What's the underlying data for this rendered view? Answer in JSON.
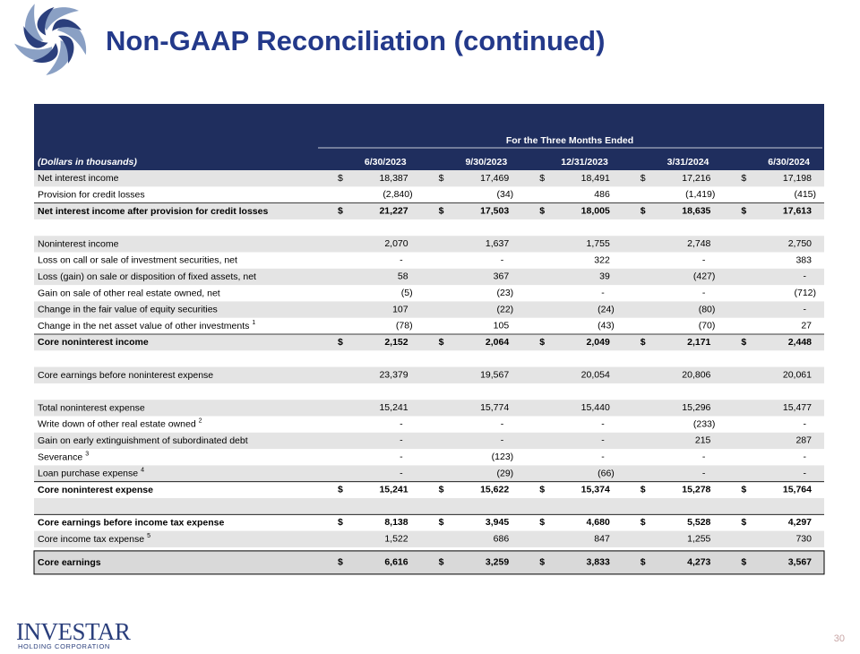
{
  "header": {
    "title": "Non-GAAP Reconciliation (continued)"
  },
  "table": {
    "period_label": "For the Three Months Ended",
    "unit_label": "(Dollars in thousands)",
    "columns": [
      "6/30/2023",
      "9/30/2023",
      "12/31/2023",
      "3/31/2024",
      "6/30/2024"
    ],
    "currency": "$",
    "sections": [
      [
        {
          "label": "Net interest income",
          "currency": true,
          "cells": [
            "18,387",
            "17,469",
            "18,491",
            "17,216",
            "17,198"
          ]
        },
        {
          "label": "Provision for credit losses",
          "cells": [
            "(2,840)",
            "(34)",
            "486",
            "(1,419)",
            "(415)"
          ]
        },
        {
          "label": "Net interest income after provision for credit losses",
          "bold": true,
          "currency": true,
          "cells": [
            "21,227",
            "17,503",
            "18,005",
            "18,635",
            "17,613"
          ]
        }
      ],
      [
        {
          "label": "Noninterest income",
          "cells": [
            "2,070",
            "1,637",
            "1,755",
            "2,748",
            "2,750"
          ]
        },
        {
          "label": "Loss on call or sale of investment securities, net",
          "cells": [
            "-",
            "-",
            "322",
            "-",
            "383"
          ]
        },
        {
          "label": "Loss (gain) on sale or disposition of fixed assets, net",
          "cells": [
            "58",
            "367",
            "39",
            "(427)",
            "-"
          ]
        },
        {
          "label": "Gain on sale of other real estate owned, net",
          "cells": [
            "(5)",
            "(23)",
            "-",
            "-",
            "(712)"
          ]
        },
        {
          "label": "Change in the fair value of equity securities",
          "cells": [
            "107",
            "(22)",
            "(24)",
            "(80)",
            "-"
          ]
        },
        {
          "label": "Change in the net asset value of other investments",
          "note": "1",
          "cells": [
            "(78)",
            "105",
            "(43)",
            "(70)",
            "27"
          ]
        },
        {
          "label": "Core noninterest income",
          "bold": true,
          "currency": true,
          "cells": [
            "2,152",
            "2,064",
            "2,049",
            "2,171",
            "2,448"
          ]
        }
      ],
      [
        {
          "label": "Core earnings before noninterest expense",
          "cells": [
            "23,379",
            "19,567",
            "20,054",
            "20,806",
            "20,061"
          ]
        }
      ],
      [
        {
          "label": "Total noninterest expense",
          "cells": [
            "15,241",
            "15,774",
            "15,440",
            "15,296",
            "15,477"
          ]
        },
        {
          "label": "Write down of other real estate owned",
          "note": "2",
          "cells": [
            "-",
            "-",
            "-",
            "(233)",
            "-"
          ]
        },
        {
          "label": "Gain on early extinguishment of subordinated debt",
          "cells": [
            "-",
            "-",
            "-",
            "215",
            "287"
          ]
        },
        {
          "label": "Severance",
          "note": "3",
          "cells": [
            "-",
            "(123)",
            "-",
            "-",
            "-"
          ]
        },
        {
          "label": "Loan purchase expense",
          "note": "4",
          "cells": [
            "-",
            "(29)",
            "(66)",
            "-",
            "-"
          ]
        },
        {
          "label": "Core noninterest expense",
          "bold": true,
          "currency": true,
          "cells": [
            "15,241",
            "15,622",
            "15,374",
            "15,278",
            "15,764"
          ]
        }
      ],
      [
        {
          "label": "Core earnings before income tax expense",
          "bold": true,
          "currency": true,
          "cells": [
            "8,138",
            "3,945",
            "4,680",
            "5,528",
            "4,297"
          ]
        },
        {
          "label": "Core income tax expense",
          "note": "5",
          "cells": [
            "1,522",
            "686",
            "847",
            "1,255",
            "730"
          ]
        }
      ],
      [
        {
          "label": "Core earnings",
          "bold": true,
          "currency": true,
          "boxed": true,
          "cells": [
            "6,616",
            "3,259",
            "3,833",
            "4,273",
            "3,567"
          ]
        }
      ]
    ]
  },
  "footer": {
    "logo": "INVESTAR",
    "logo_sub": "HOLDING CORPORATION",
    "page": "30"
  }
}
